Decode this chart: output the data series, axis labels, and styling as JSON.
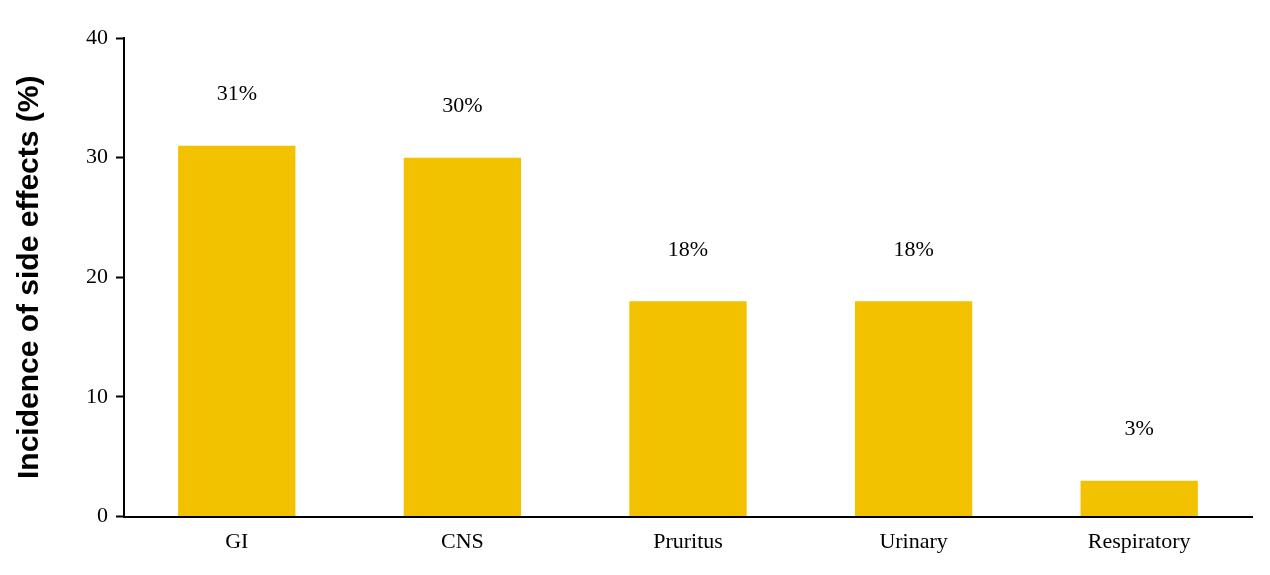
{
  "chart_data": {
    "type": "bar",
    "ylabel": "Incidence of side effects (%)",
    "categories": [
      "GI",
      "CNS",
      "Pruritus",
      "Urinary",
      "Respiratory"
    ],
    "values": [
      31,
      30,
      18,
      18,
      3
    ],
    "value_labels": [
      "31%",
      "30%",
      "18%",
      "18%",
      "3%"
    ],
    "color": "#f2c200",
    "ylim": [
      0,
      40
    ],
    "yticks": [
      0,
      10,
      20,
      30,
      40
    ],
    "grid": false,
    "legend": false
  }
}
